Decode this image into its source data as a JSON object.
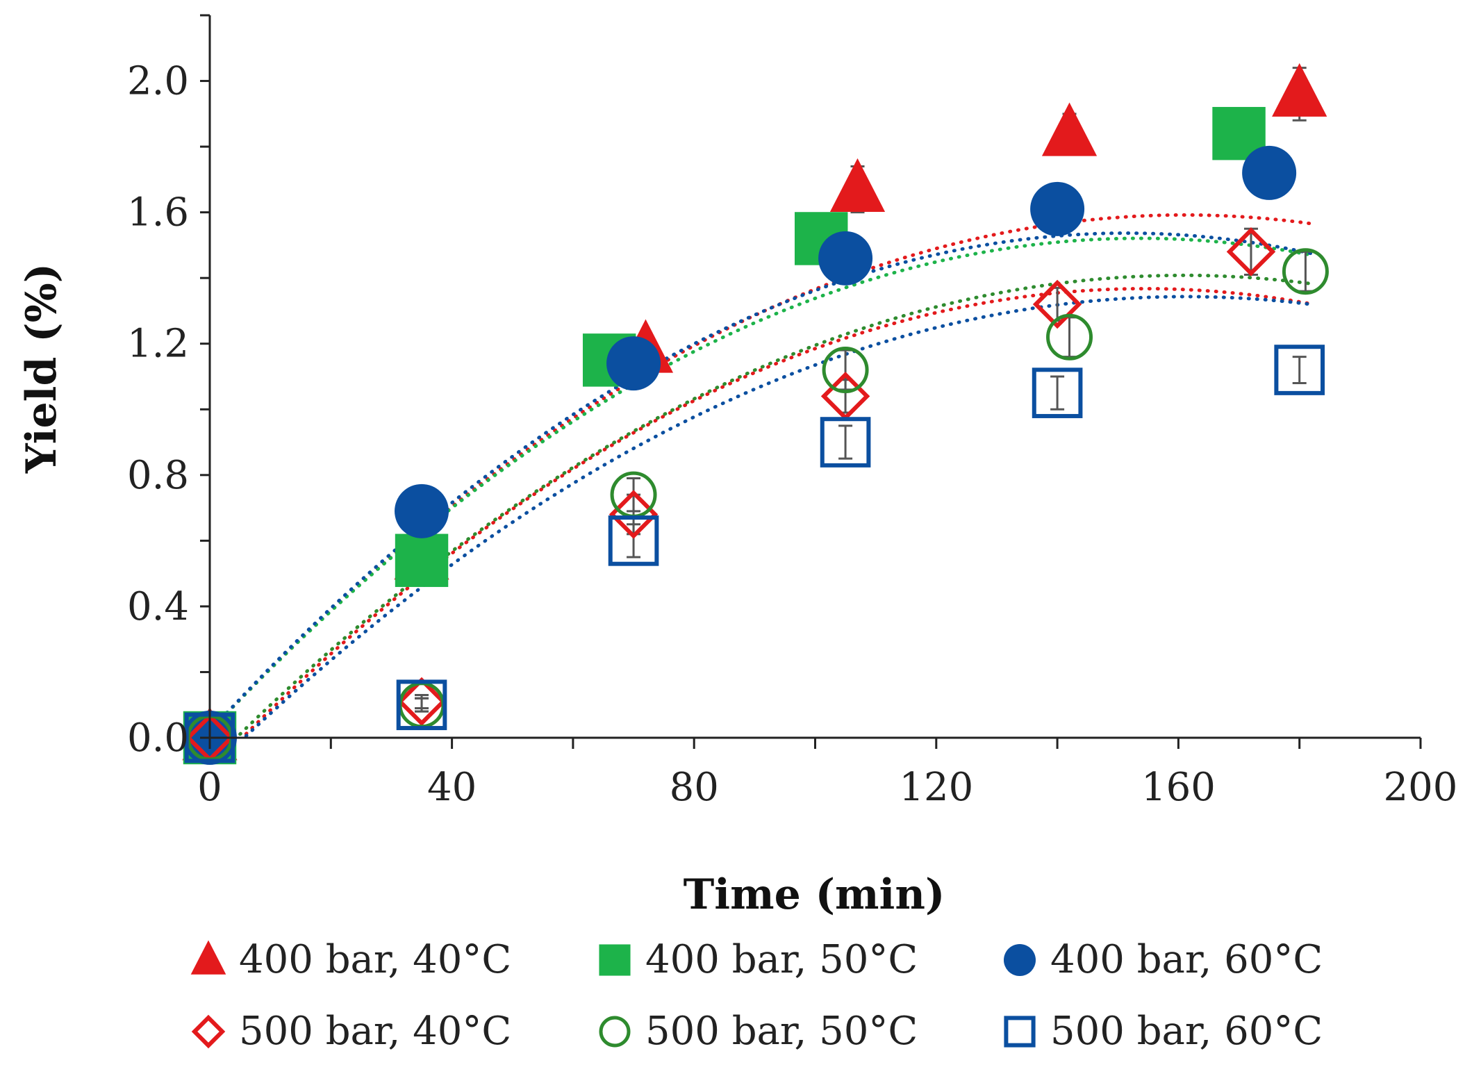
{
  "chart_data": {
    "type": "scatter",
    "title": "",
    "xlabel": "Time (min)",
    "ylabel": "Yield (%)",
    "xlim": [
      0,
      200
    ],
    "ylim": [
      0,
      2.2
    ],
    "xticks": [
      0,
      40,
      80,
      120,
      160,
      200
    ],
    "yticks": [
      0.0,
      0.4,
      0.8,
      1.2,
      1.6,
      2.0
    ],
    "xtick_labels": [
      "0",
      "40",
      "80",
      "120",
      "160",
      "200"
    ],
    "ytick_labels": [
      "0.0",
      "0.4",
      "0.8",
      "1.2",
      "1.6",
      "2.0"
    ],
    "grid": false,
    "legend_position": "bottom",
    "trend_lines": "dotted polynomial fits per series",
    "series": [
      {
        "name": "400 bar, 40°C",
        "marker": "triangle",
        "filled": true,
        "color": "#e31a1c",
        "x": [
          0,
          35,
          72,
          107,
          142,
          180
        ],
        "y": [
          0.0,
          0.55,
          1.18,
          1.67,
          1.84,
          1.96
        ],
        "err": [
          0,
          0,
          0,
          0.07,
          0.06,
          0.08
        ],
        "fit": [
          -6.06e-05,
          0.01952,
          0.02
        ]
      },
      {
        "name": "400 bar, 50°C",
        "marker": "square",
        "filled": true,
        "color": "#1db34a",
        "x": [
          0,
          35,
          66,
          101,
          170
        ],
        "y": [
          0.0,
          0.54,
          1.15,
          1.52,
          1.84
        ],
        "err": [
          0,
          0,
          0,
          0,
          0
        ],
        "fit": [
          -6.36e-05,
          0.01954,
          0.02
        ]
      },
      {
        "name": "400 bar, 60°C",
        "marker": "circle",
        "filled": true,
        "color": "#0b4fa0",
        "x": [
          0,
          35,
          70,
          105,
          140,
          175
        ],
        "y": [
          0.0,
          0.69,
          1.14,
          1.46,
          1.61,
          1.72
        ],
        "err": [
          0,
          0,
          0,
          0,
          0,
          0
        ],
        "fit": [
          -6.62e-05,
          0.02004,
          0.02
        ]
      },
      {
        "name": "500 bar, 40°C",
        "marker": "diamond",
        "filled": false,
        "color": "#e31a1c",
        "x": [
          0,
          35,
          70,
          105,
          140,
          172
        ],
        "y": [
          0.0,
          0.11,
          0.68,
          1.04,
          1.32,
          1.48
        ],
        "err": [
          0,
          0.02,
          0.06,
          0.05,
          0.05,
          0.07
        ],
        "fit": [
          -6.15e-05,
          0.019,
          -0.1
        ]
      },
      {
        "name": "500 bar, 50°C",
        "marker": "circle",
        "filled": false,
        "color": "#2e8b2e",
        "x": [
          0,
          35,
          70,
          105,
          142,
          181
        ],
        "y": [
          0.0,
          0.1,
          0.74,
          1.12,
          1.22,
          1.42
        ],
        "err": [
          0,
          0.02,
          0.05,
          0.06,
          0.06,
          0.06
        ],
        "fit": [
          -5.75e-05,
          0.0185,
          -0.08
        ]
      },
      {
        "name": "500 bar, 60°C",
        "marker": "square",
        "filled": false,
        "color": "#0b4fa0",
        "x": [
          0,
          35,
          70,
          105,
          140,
          180
        ],
        "y": [
          0.0,
          0.1,
          0.6,
          0.9,
          1.05,
          1.12
        ],
        "err": [
          0,
          0.02,
          0.05,
          0.05,
          0.05,
          0.04
        ],
        "fit": [
          -5.55e-05,
          0.0179,
          -0.1
        ]
      }
    ]
  }
}
